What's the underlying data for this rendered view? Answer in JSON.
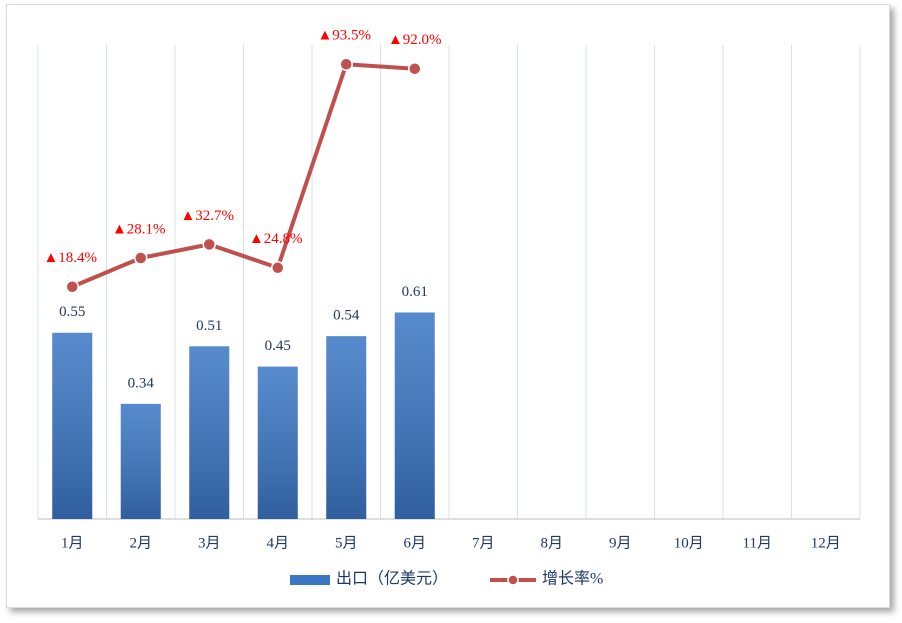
{
  "chart_data": {
    "type": "bar-line",
    "categories": [
      "1月",
      "2月",
      "3月",
      "4月",
      "5月",
      "6月",
      "7月",
      "8月",
      "9月",
      "10月",
      "11月",
      "12月"
    ],
    "series": [
      {
        "name": "出口（亿美元）",
        "type": "bar",
        "color": "#3a76c4",
        "values": [
          0.55,
          0.34,
          0.51,
          0.45,
          0.54,
          0.61,
          null,
          null,
          null,
          null,
          null,
          null
        ]
      },
      {
        "name": "增长率%",
        "type": "line",
        "axis": "y2",
        "color": "#c0504d",
        "label_color": "#ff0000",
        "values": [
          18.4,
          28.1,
          32.7,
          24.8,
          93.5,
          92.0,
          null,
          null,
          null,
          null,
          null,
          null
        ],
        "value_labels": [
          "▲18.4%",
          "▲28.1%",
          "▲32.7%",
          "▲24.8%",
          "▲93.5%",
          "▲92.0%",
          null,
          null,
          null,
          null,
          null,
          null
        ]
      }
    ],
    "ylim": [
      0,
      1.4
    ],
    "y2lim": [
      -60,
      100
    ],
    "grid": true,
    "legend": "bottom"
  }
}
